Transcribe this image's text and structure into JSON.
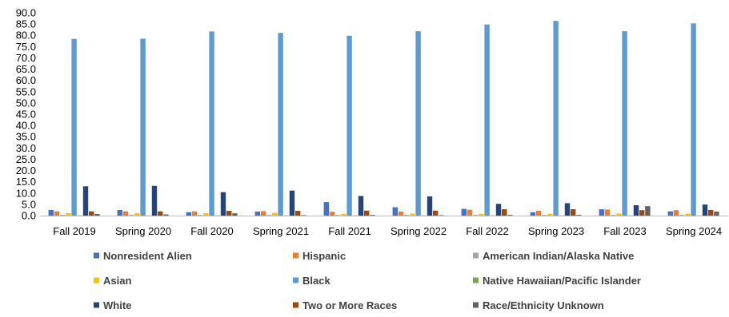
{
  "chart_data": {
    "type": "bar",
    "title": "",
    "xlabel": "",
    "ylabel": "",
    "ylim": [
      0,
      90
    ],
    "y_tick_step": 5,
    "y_tick_decimals": 1,
    "grid": false,
    "legend_position": "bottom",
    "categories": [
      "Fall 2019",
      "Spring 2020",
      "Fall 2020",
      "Spring 2021",
      "Fall 2021",
      "Spring 2022",
      "Fall 2022",
      "Spring 2023",
      "Fall 2023",
      "Spring 2024"
    ],
    "series": [
      {
        "name": "Nonresident Alien",
        "color": "#4472C4",
        "values": [
          2.5,
          2.5,
          1.5,
          1.8,
          6.0,
          3.7,
          3.0,
          1.5,
          2.8,
          1.9
        ]
      },
      {
        "name": "Hispanic",
        "color": "#ED7D31",
        "values": [
          1.9,
          1.9,
          1.9,
          2.0,
          1.7,
          1.8,
          2.6,
          2.2,
          2.7,
          2.4
        ]
      },
      {
        "name": "American Indian/Alaska Native",
        "color": "#A5A5A5",
        "values": [
          0.3,
          0.3,
          0.3,
          0.3,
          0.3,
          0.3,
          0.3,
          0.3,
          0.3,
          0.3
        ]
      },
      {
        "name": "Asian",
        "color": "#FFC000",
        "values": [
          1.1,
          1.1,
          1.1,
          1.2,
          0.8,
          0.9,
          0.8,
          0.8,
          0.9,
          0.9
        ]
      },
      {
        "name": "Black",
        "color": "#5B9BD5",
        "values": [
          78.4,
          78.5,
          81.7,
          81.1,
          79.8,
          81.8,
          84.8,
          86.4,
          81.8,
          85.3
        ]
      },
      {
        "name": "Native Hawaiian/Pacific Islander",
        "color": "#70AD47",
        "values": [
          0.1,
          0.1,
          0.1,
          0.1,
          0.1,
          0.1,
          0.1,
          0.1,
          0.1,
          0.1
        ]
      },
      {
        "name": "White",
        "color": "#264478",
        "values": [
          13.0,
          13.2,
          10.4,
          11.1,
          8.7,
          8.5,
          5.2,
          5.5,
          4.6,
          4.9
        ]
      },
      {
        "name": "Two or More Races",
        "color": "#9E480E",
        "values": [
          1.9,
          1.9,
          2.1,
          2.1,
          2.2,
          2.2,
          2.8,
          2.8,
          2.4,
          2.5
        ]
      },
      {
        "name": "Race/Ethnicity Unknown",
        "color": "#636363",
        "values": [
          0.7,
          0.5,
          1.0,
          0.2,
          0.3,
          0.2,
          0.3,
          0.3,
          4.2,
          1.8
        ]
      }
    ]
  }
}
